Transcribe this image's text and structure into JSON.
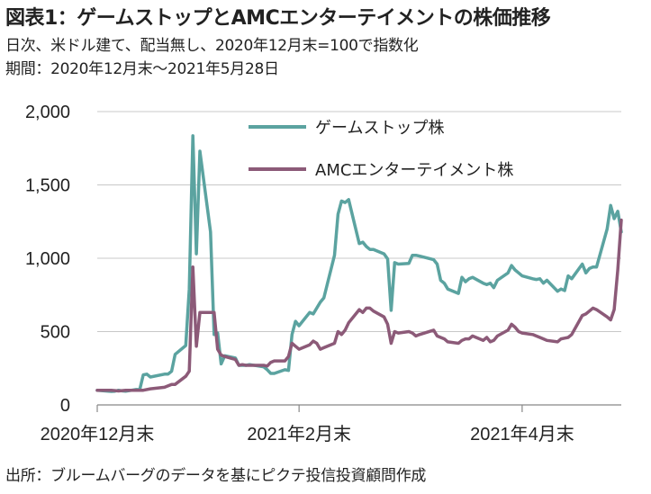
{
  "header": {
    "title": "図表1：ゲームストップとAMCエンターテイメントの株価推移",
    "subtitle1": "日次、米ドル建て、配当無し、2020年12月末=100で指数化",
    "subtitle2": "期間：2020年12月末～2021年5月28日"
  },
  "footer": {
    "source": "出所：ブルームバーグのデータを基にピクテ投信投資顧問作成"
  },
  "chart_data": {
    "type": "line",
    "title": "",
    "xlabel": "",
    "ylabel": "",
    "ylim": [
      0,
      2000
    ],
    "yticks": [
      0,
      500,
      1000,
      1500,
      2000
    ],
    "ytick_labels": [
      "0",
      "500",
      "1,000",
      "1,500",
      "2,000"
    ],
    "x_range": [
      "2020-12-31",
      "2021-05-28"
    ],
    "xticks": [
      {
        "date": "2020-12-31",
        "label": "2020年12月末"
      },
      {
        "date": "2021-02-26",
        "label": "2021年2月末"
      },
      {
        "date": "2021-04-30",
        "label": "2021年4月末"
      }
    ],
    "grid": "horizontal",
    "legend_position": "top-center",
    "series": [
      {
        "name": "ゲームストップ株",
        "color": "#5ba3a0",
        "points": [
          [
            "2020-12-31",
            100
          ],
          [
            "2021-01-04",
            92
          ],
          [
            "2021-01-05",
            94
          ],
          [
            "2021-01-06",
            100
          ],
          [
            "2021-01-07",
            96
          ],
          [
            "2021-01-08",
            93
          ],
          [
            "2021-01-11",
            105
          ],
          [
            "2021-01-12",
            104
          ],
          [
            "2021-01-13",
            205
          ],
          [
            "2021-01-14",
            210
          ],
          [
            "2021-01-15",
            190
          ],
          [
            "2021-01-19",
            210
          ],
          [
            "2021-01-20",
            210
          ],
          [
            "2021-01-21",
            230
          ],
          [
            "2021-01-22",
            345
          ],
          [
            "2021-01-25",
            405
          ],
          [
            "2021-01-26",
            790
          ],
          [
            "2021-01-27",
            1835
          ],
          [
            "2021-01-28",
            1030
          ],
          [
            "2021-01-29",
            1730
          ],
          [
            "2021-02-01",
            1180
          ],
          [
            "2021-02-02",
            480
          ],
          [
            "2021-02-03",
            490
          ],
          [
            "2021-02-04",
            280
          ],
          [
            "2021-02-05",
            335
          ],
          [
            "2021-02-08",
            320
          ],
          [
            "2021-02-09",
            270
          ],
          [
            "2021-02-10",
            270
          ],
          [
            "2021-02-11",
            270
          ],
          [
            "2021-02-12",
            275
          ],
          [
            "2021-02-16",
            260
          ],
          [
            "2021-02-17",
            240
          ],
          [
            "2021-02-18",
            215
          ],
          [
            "2021-02-19",
            215
          ],
          [
            "2021-02-22",
            240
          ],
          [
            "2021-02-23",
            235
          ],
          [
            "2021-02-24",
            480
          ],
          [
            "2021-02-25",
            570
          ],
          [
            "2021-02-26",
            540
          ],
          [
            "2021-03-01",
            630
          ],
          [
            "2021-03-02",
            620
          ],
          [
            "2021-03-03",
            660
          ],
          [
            "2021-03-04",
            700
          ],
          [
            "2021-03-05",
            730
          ],
          [
            "2021-03-08",
            1020
          ],
          [
            "2021-03-09",
            1300
          ],
          [
            "2021-03-10",
            1390
          ],
          [
            "2021-03-11",
            1380
          ],
          [
            "2021-03-12",
            1400
          ],
          [
            "2021-03-15",
            1100
          ],
          [
            "2021-03-16",
            1110
          ],
          [
            "2021-03-17",
            1080
          ],
          [
            "2021-03-18",
            1060
          ],
          [
            "2021-03-19",
            1060
          ],
          [
            "2021-03-22",
            1030
          ],
          [
            "2021-03-23",
            995
          ],
          [
            "2021-03-24",
            645
          ],
          [
            "2021-03-25",
            970
          ],
          [
            "2021-03-26",
            960
          ],
          [
            "2021-03-29",
            965
          ],
          [
            "2021-03-30",
            1020
          ],
          [
            "2021-03-31",
            1020
          ],
          [
            "2021-04-01",
            1015
          ],
          [
            "2021-04-05",
            990
          ],
          [
            "2021-04-06",
            960
          ],
          [
            "2021-04-07",
            850
          ],
          [
            "2021-04-08",
            830
          ],
          [
            "2021-04-09",
            790
          ],
          [
            "2021-04-12",
            760
          ],
          [
            "2021-04-13",
            870
          ],
          [
            "2021-04-14",
            840
          ],
          [
            "2021-04-15",
            860
          ],
          [
            "2021-04-16",
            870
          ],
          [
            "2021-04-19",
            830
          ],
          [
            "2021-04-20",
            820
          ],
          [
            "2021-04-21",
            830
          ],
          [
            "2021-04-22",
            800
          ],
          [
            "2021-04-23",
            850
          ],
          [
            "2021-04-26",
            900
          ],
          [
            "2021-04-27",
            950
          ],
          [
            "2021-04-28",
            920
          ],
          [
            "2021-04-29",
            900
          ],
          [
            "2021-04-30",
            880
          ],
          [
            "2021-05-03",
            860
          ],
          [
            "2021-05-04",
            855
          ],
          [
            "2021-05-05",
            860
          ],
          [
            "2021-05-06",
            830
          ],
          [
            "2021-05-07",
            850
          ],
          [
            "2021-05-10",
            775
          ],
          [
            "2021-05-11",
            790
          ],
          [
            "2021-05-12",
            780
          ],
          [
            "2021-05-13",
            880
          ],
          [
            "2021-05-14",
            860
          ],
          [
            "2021-05-17",
            960
          ],
          [
            "2021-05-18",
            900
          ],
          [
            "2021-05-19",
            930
          ],
          [
            "2021-05-20",
            940
          ],
          [
            "2021-05-21",
            940
          ],
          [
            "2021-05-24",
            1200
          ],
          [
            "2021-05-25",
            1360
          ],
          [
            "2021-05-26",
            1270
          ],
          [
            "2021-05-27",
            1320
          ],
          [
            "2021-05-28",
            1180
          ]
        ]
      },
      {
        "name": "AMCエンターテイメント株",
        "color": "#8c5a78",
        "points": [
          [
            "2020-12-31",
            100
          ],
          [
            "2021-01-04",
            100
          ],
          [
            "2021-01-06",
            95
          ],
          [
            "2021-01-08",
            100
          ],
          [
            "2021-01-11",
            100
          ],
          [
            "2021-01-13",
            100
          ],
          [
            "2021-01-15",
            110
          ],
          [
            "2021-01-19",
            120
          ],
          [
            "2021-01-21",
            140
          ],
          [
            "2021-01-22",
            140
          ],
          [
            "2021-01-25",
            195
          ],
          [
            "2021-01-26",
            230
          ],
          [
            "2021-01-27",
            940
          ],
          [
            "2021-01-28",
            400
          ],
          [
            "2021-01-29",
            630
          ],
          [
            "2021-02-01",
            630
          ],
          [
            "2021-02-02",
            630
          ],
          [
            "2021-02-03",
            380
          ],
          [
            "2021-02-04",
            340
          ],
          [
            "2021-02-05",
            330
          ],
          [
            "2021-02-08",
            310
          ],
          [
            "2021-02-09",
            270
          ],
          [
            "2021-02-10",
            275
          ],
          [
            "2021-02-11",
            270
          ],
          [
            "2021-02-12",
            270
          ],
          [
            "2021-02-16",
            270
          ],
          [
            "2021-02-17",
            265
          ],
          [
            "2021-02-18",
            290
          ],
          [
            "2021-02-19",
            300
          ],
          [
            "2021-02-22",
            300
          ],
          [
            "2021-02-23",
            330
          ],
          [
            "2021-02-24",
            420
          ],
          [
            "2021-02-25",
            400
          ],
          [
            "2021-02-26",
            380
          ],
          [
            "2021-03-01",
            410
          ],
          [
            "2021-03-02",
            435
          ],
          [
            "2021-03-03",
            420
          ],
          [
            "2021-03-04",
            380
          ],
          [
            "2021-03-05",
            390
          ],
          [
            "2021-03-08",
            420
          ],
          [
            "2021-03-09",
            500
          ],
          [
            "2021-03-10",
            480
          ],
          [
            "2021-03-11",
            510
          ],
          [
            "2021-03-12",
            560
          ],
          [
            "2021-03-15",
            650
          ],
          [
            "2021-03-16",
            630
          ],
          [
            "2021-03-17",
            660
          ],
          [
            "2021-03-18",
            660
          ],
          [
            "2021-03-19",
            640
          ],
          [
            "2021-03-22",
            600
          ],
          [
            "2021-03-23",
            550
          ],
          [
            "2021-03-24",
            420
          ],
          [
            "2021-03-25",
            500
          ],
          [
            "2021-03-26",
            490
          ],
          [
            "2021-03-29",
            500
          ],
          [
            "2021-03-30",
            490
          ],
          [
            "2021-03-31",
            470
          ],
          [
            "2021-04-01",
            480
          ],
          [
            "2021-04-05",
            510
          ],
          [
            "2021-04-06",
            470
          ],
          [
            "2021-04-07",
            460
          ],
          [
            "2021-04-08",
            450
          ],
          [
            "2021-04-09",
            430
          ],
          [
            "2021-04-12",
            420
          ],
          [
            "2021-04-13",
            440
          ],
          [
            "2021-04-14",
            450
          ],
          [
            "2021-04-15",
            450
          ],
          [
            "2021-04-16",
            470
          ],
          [
            "2021-04-19",
            440
          ],
          [
            "2021-04-20",
            460
          ],
          [
            "2021-04-21",
            430
          ],
          [
            "2021-04-22",
            440
          ],
          [
            "2021-04-23",
            470
          ],
          [
            "2021-04-26",
            510
          ],
          [
            "2021-04-27",
            550
          ],
          [
            "2021-04-28",
            530
          ],
          [
            "2021-04-29",
            500
          ],
          [
            "2021-04-30",
            490
          ],
          [
            "2021-05-03",
            480
          ],
          [
            "2021-05-04",
            470
          ],
          [
            "2021-05-05",
            460
          ],
          [
            "2021-05-06",
            450
          ],
          [
            "2021-05-07",
            440
          ],
          [
            "2021-05-10",
            430
          ],
          [
            "2021-05-11",
            450
          ],
          [
            "2021-05-12",
            455
          ],
          [
            "2021-05-13",
            460
          ],
          [
            "2021-05-14",
            480
          ],
          [
            "2021-05-17",
            610
          ],
          [
            "2021-05-18",
            620
          ],
          [
            "2021-05-19",
            640
          ],
          [
            "2021-05-20",
            660
          ],
          [
            "2021-05-21",
            650
          ],
          [
            "2021-05-24",
            600
          ],
          [
            "2021-05-25",
            580
          ],
          [
            "2021-05-26",
            650
          ],
          [
            "2021-05-27",
            920
          ],
          [
            "2021-05-28",
            1260
          ]
        ]
      }
    ]
  }
}
